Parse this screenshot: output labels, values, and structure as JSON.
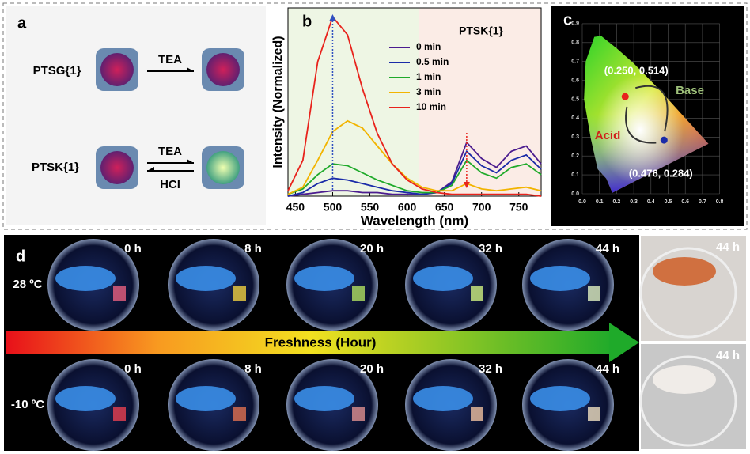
{
  "panel_a": {
    "label": "a",
    "rows": [
      {
        "name": "PTSG{1}",
        "arrow_top": "TEA"
      },
      {
        "name": "PTSK{1}",
        "arrow_top": "TEA",
        "arrow_bottom": "HCl"
      }
    ]
  },
  "chart_data": {
    "type": "line",
    "label": "b",
    "title": "PTSK{1}",
    "x_label": "Wavelength (nm)",
    "y_label": "Intensity (Normalized)",
    "x": [
      440,
      460,
      480,
      500,
      520,
      540,
      560,
      580,
      600,
      620,
      640,
      660,
      680,
      700,
      720,
      740,
      760,
      780
    ],
    "xlim": [
      440,
      780
    ],
    "xticks": [
      450,
      500,
      550,
      600,
      650,
      700,
      750
    ],
    "ylim": [
      0,
      1.05
    ],
    "series": [
      {
        "name": "0 min",
        "color": "#4b1c8f",
        "values": [
          0,
          0.01,
          0.02,
          0.03,
          0.03,
          0.02,
          0.02,
          0.01,
          0.01,
          0.01,
          0.02,
          0.08,
          0.3,
          0.21,
          0.16,
          0.25,
          0.28,
          0.18
        ]
      },
      {
        "name": "0.5 min",
        "color": "#1a2ba8",
        "values": [
          0,
          0.02,
          0.07,
          0.1,
          0.09,
          0.07,
          0.05,
          0.03,
          0.02,
          0.01,
          0.02,
          0.07,
          0.25,
          0.17,
          0.13,
          0.2,
          0.23,
          0.15
        ]
      },
      {
        "name": "1 min",
        "color": "#1faa2a",
        "values": [
          0.01,
          0.04,
          0.12,
          0.18,
          0.17,
          0.13,
          0.09,
          0.06,
          0.03,
          0.02,
          0.02,
          0.06,
          0.2,
          0.13,
          0.1,
          0.16,
          0.18,
          0.12
        ]
      },
      {
        "name": "3 min",
        "color": "#f2b400",
        "values": [
          0.01,
          0.05,
          0.2,
          0.36,
          0.42,
          0.38,
          0.28,
          0.18,
          0.1,
          0.05,
          0.03,
          0.03,
          0.07,
          0.04,
          0.03,
          0.04,
          0.05,
          0.03
        ]
      },
      {
        "name": "10 min",
        "color": "#e8231c",
        "values": [
          0.03,
          0.2,
          0.75,
          1.0,
          0.9,
          0.6,
          0.35,
          0.18,
          0.09,
          0.04,
          0.02,
          0.01,
          0.01,
          0.01,
          0.01,
          0.01,
          0.01,
          0
        ]
      }
    ]
  },
  "panel_c": {
    "label": "c",
    "xticks": [
      "0.0",
      "0.1",
      "0.2",
      "0.3",
      "0.4",
      "0.5",
      "0.6",
      "0.7",
      "0.8"
    ],
    "yticks": [
      "0.0",
      "0.1",
      "0.2",
      "0.3",
      "0.4",
      "0.5",
      "0.6",
      "0.7",
      "0.8",
      "0.9"
    ],
    "points": [
      {
        "label": "(0.250, 0.514)",
        "x": 0.25,
        "y": 0.514,
        "color": "#e8231c"
      },
      {
        "label": "(0.476, 0.284)",
        "x": 0.476,
        "y": 0.284,
        "color": "#1a2ba8"
      }
    ],
    "base_label": "Base",
    "acid_label": "Acid"
  },
  "panel_d": {
    "label": "d",
    "arrow_label": "Freshness (Hour)",
    "rows": [
      {
        "temperature": "28 ºC",
        "times": [
          "0 h",
          "8 h",
          "20 h",
          "32 h",
          "44 h",
          "44 h"
        ]
      },
      {
        "temperature": "-10 ºC",
        "times": [
          "0 h",
          "8 h",
          "20 h",
          "32 h",
          "44 h",
          "44 h"
        ]
      }
    ]
  }
}
